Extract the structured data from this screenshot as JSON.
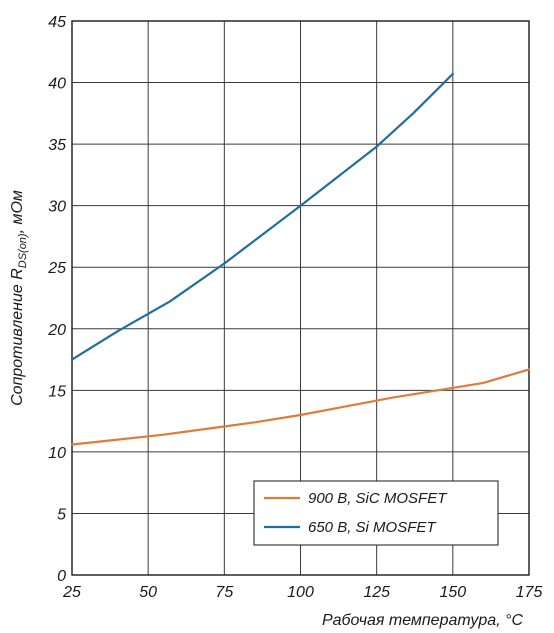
{
  "chart_data": {
    "type": "line",
    "title": "",
    "xlabel": "Рабочая температура, °C",
    "ylabel": {
      "prefix": "Сопротивление R",
      "subscript": "DS(on)",
      "suffix": ", мОм"
    },
    "xlim": [
      25,
      175
    ],
    "ylim": [
      0,
      45
    ],
    "xticks": [
      25,
      50,
      75,
      100,
      125,
      150,
      175
    ],
    "yticks": [
      0,
      5,
      10,
      15,
      20,
      25,
      30,
      35,
      40,
      45
    ],
    "grid": true,
    "legend_position": "bottom-right",
    "series": [
      {
        "name": "900 В, SiC MOSFET",
        "color": "#e07b39",
        "x": [
          25,
          40,
          55,
          70,
          85,
          100,
          115,
          130,
          145,
          160,
          175
        ],
        "y": [
          10.6,
          11.0,
          11.4,
          11.9,
          12.4,
          13.0,
          13.7,
          14.4,
          15.0,
          15.6,
          16.7
        ]
      },
      {
        "name": "650 В, Si MOSFET",
        "color": "#1f6f9c",
        "x": [
          25,
          40,
          57,
          75,
          100,
          125,
          137,
          150
        ],
        "y": [
          17.5,
          19.8,
          22.2,
          25.3,
          30.0,
          34.8,
          37.5,
          40.7
        ]
      }
    ]
  }
}
